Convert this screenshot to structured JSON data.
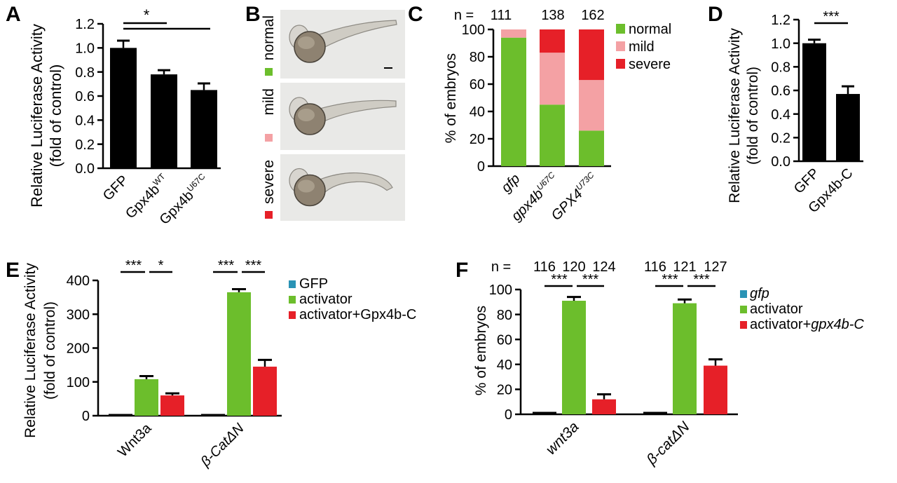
{
  "colors": {
    "black": "#000000",
    "gfp": "#2a93b5",
    "activator": "#6cbe2c",
    "gpx": "#e62028",
    "normal": "#6cbe2c",
    "mild": "#f4a1a4",
    "severe": "#e62028",
    "embryo_bg": "#e9e9e7"
  },
  "chart_data": [
    {
      "panel": "A",
      "type": "bar",
      "ylabel": [
        "Relative Luciferase Activity",
        "(fold of control)"
      ],
      "ylim": [
        0,
        1.2
      ],
      "yticks": [
        "0.0",
        "0.2",
        "0.4",
        "0.6",
        "0.8",
        "1.0",
        "1.2"
      ],
      "categories": [
        {
          "main": "GFP",
          "sup": ""
        },
        {
          "main": "Gpx4b",
          "sup": "WT"
        },
        {
          "main": "Gpx4b",
          "sup": "U67C"
        }
      ],
      "values": [
        1.0,
        0.78,
        0.65
      ],
      "errors": [
        0.06,
        0.035,
        0.055
      ],
      "significance": [
        {
          "from": 0,
          "to": 1,
          "label": "*"
        },
        {
          "from": 0,
          "to": 2,
          "label": ""
        }
      ]
    },
    {
      "panel": "B",
      "type": "image-panels",
      "labels": [
        "normal",
        "mild",
        "severe"
      ]
    },
    {
      "panel": "C",
      "type": "stacked-bar",
      "ylabel": "% of embryos",
      "ylim": [
        0,
        100
      ],
      "yticks": [
        "0",
        "20",
        "40",
        "60",
        "80",
        "100"
      ],
      "n_prefix": "n =",
      "n": [
        "111",
        "138",
        "162"
      ],
      "categories": [
        {
          "main": "gfp",
          "sup": ""
        },
        {
          "main": "gpx4b",
          "sup": "U67C"
        },
        {
          "main": "GPX4",
          "sup": "U73C"
        }
      ],
      "legend": [
        "normal",
        "mild",
        "severe"
      ],
      "series": [
        {
          "name": "normal",
          "values": [
            94,
            45,
            26
          ]
        },
        {
          "name": "mild",
          "values": [
            6,
            38,
            37
          ]
        },
        {
          "name": "severe",
          "values": [
            0,
            17,
            37
          ]
        }
      ]
    },
    {
      "panel": "D",
      "type": "bar",
      "ylabel": [
        "Relative Luciferase Activity",
        "(fold of control)"
      ],
      "ylim": [
        0,
        1.2
      ],
      "yticks": [
        "0.0",
        "0.2",
        "0.4",
        "0.6",
        "0.8",
        "1.0",
        "1.2"
      ],
      "categories": [
        "GFP",
        "Gpx4b-C"
      ],
      "values": [
        1.0,
        0.57
      ],
      "errors": [
        0.03,
        0.065
      ],
      "significance": [
        {
          "from": 0,
          "to": 1,
          "label": "***"
        }
      ]
    },
    {
      "panel": "E",
      "type": "grouped-bar",
      "ylabel": [
        "Relative Luciferase Activity",
        "(fold of control)"
      ],
      "ylim": [
        0,
        400
      ],
      "yticks": [
        "0",
        "100",
        "200",
        "300",
        "400"
      ],
      "groups": [
        "Wnt3a",
        "β-CatΔN"
      ],
      "legend": [
        "GFP",
        "activator",
        "activator+Gpx4b-C"
      ],
      "series": [
        {
          "name": "GFP",
          "values": [
            1,
            1
          ],
          "errors": [
            0,
            0
          ]
        },
        {
          "name": "activator",
          "values": [
            108,
            365
          ],
          "errors": [
            9,
            9
          ]
        },
        {
          "name": "activator+Gpx4b-C",
          "values": [
            60,
            145
          ],
          "errors": [
            6,
            20
          ]
        }
      ],
      "significance": [
        [
          "***",
          "*"
        ],
        [
          "***",
          "***"
        ]
      ]
    },
    {
      "panel": "F",
      "type": "grouped-bar",
      "ylabel": "% of embryos",
      "ylim": [
        0,
        100
      ],
      "yticks": [
        "0",
        "20",
        "40",
        "60",
        "80",
        "100"
      ],
      "n_prefix": "n =",
      "n": [
        [
          "116",
          "120",
          "124"
        ],
        [
          "116",
          "121",
          "127"
        ]
      ],
      "groups": [
        "wnt3a",
        "β-catΔN"
      ],
      "legend": [
        {
          "main": "gfp",
          "italic": ""
        },
        {
          "main": "activator",
          "italic": ""
        },
        {
          "main": "activator+",
          "italic": "gpx4b-C"
        }
      ],
      "series": [
        {
          "name": "gfp",
          "values": [
            1,
            1
          ],
          "errors": [
            0,
            0
          ]
        },
        {
          "name": "activator",
          "values": [
            91,
            89
          ],
          "errors": [
            3,
            3
          ]
        },
        {
          "name": "activator+gpx4b-C",
          "values": [
            12,
            39
          ],
          "errors": [
            4,
            5
          ]
        }
      ],
      "significance": [
        [
          "***",
          "***"
        ],
        [
          "***",
          "***"
        ]
      ]
    }
  ]
}
